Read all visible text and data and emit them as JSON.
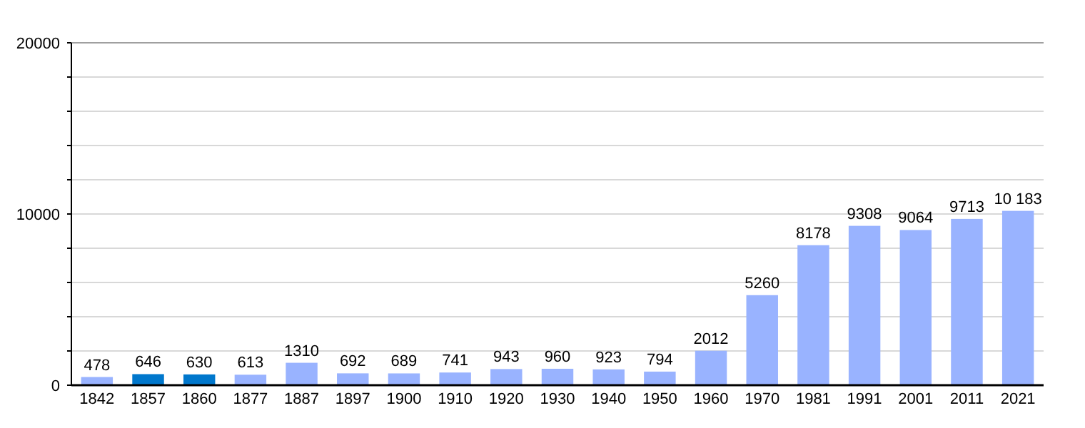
{
  "chart_data": {
    "type": "bar",
    "categories": [
      "1842",
      "1857",
      "1860",
      "1877",
      "1887",
      "1897",
      "1900",
      "1910",
      "1920",
      "1930",
      "1940",
      "1950",
      "1960",
      "1970",
      "1981",
      "1991",
      "2001",
      "2011",
      "2021"
    ],
    "values": [
      478,
      646,
      630,
      613,
      1310,
      692,
      689,
      741,
      943,
      960,
      923,
      794,
      2012,
      5260,
      8178,
      9308,
      9064,
      9713,
      10183
    ],
    "colors": [
      "#99b3ff",
      "#0077cc",
      "#0077cc",
      "#99b3ff",
      "#99b3ff",
      "#99b3ff",
      "#99b3ff",
      "#99b3ff",
      "#99b3ff",
      "#99b3ff",
      "#99b3ff",
      "#99b3ff",
      "#99b3ff",
      "#99b3ff",
      "#99b3ff",
      "#99b3ff",
      "#99b3ff",
      "#99b3ff",
      "#99b3ff"
    ],
    "value_labels": [
      "478",
      "646",
      "630",
      "613",
      "1310",
      "692",
      "689",
      "741",
      "943",
      "960",
      "923",
      "794",
      "2012",
      "5260",
      "8178",
      "9308",
      "9064",
      "9713",
      "10 183"
    ],
    "ylim": [
      0,
      20000
    ],
    "yticks": [
      0,
      {
        "value": 2000,
        "label": null
      },
      {
        "value": 4000,
        "label": null
      },
      {
        "value": 6000,
        "label": null
      },
      {
        "value": 8000,
        "label": null
      },
      10000,
      {
        "value": 12000,
        "label": null
      },
      {
        "value": 14000,
        "label": null
      },
      {
        "value": 16000,
        "label": null
      },
      {
        "value": 18000,
        "label": null
      },
      20000
    ],
    "grid": true
  }
}
